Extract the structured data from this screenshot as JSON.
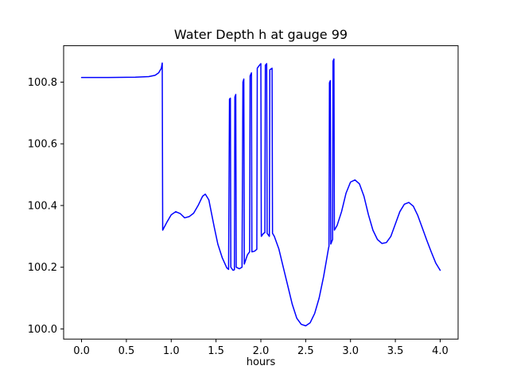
{
  "chart_data": {
    "type": "line",
    "title": "Water Depth h at gauge 99",
    "xlabel": "hours",
    "ylabel": "",
    "line_color": "#0000ff",
    "xlim": [
      -0.2,
      4.2
    ],
    "ylim": [
      99.967,
      100.918
    ],
    "x_ticks": [
      {
        "v": 0.0,
        "label": "0.0"
      },
      {
        "v": 0.5,
        "label": "0.5"
      },
      {
        "v": 1.0,
        "label": "1.0"
      },
      {
        "v": 1.5,
        "label": "1.5"
      },
      {
        "v": 2.0,
        "label": "2.0"
      },
      {
        "v": 2.5,
        "label": "2.5"
      },
      {
        "v": 3.0,
        "label": "3.0"
      },
      {
        "v": 3.5,
        "label": "3.5"
      },
      {
        "v": 4.0,
        "label": "4.0"
      }
    ],
    "y_ticks": [
      {
        "v": 100.0,
        "label": "100.0"
      },
      {
        "v": 100.2,
        "label": "100.2"
      },
      {
        "v": 100.4,
        "label": "100.4"
      },
      {
        "v": 100.6,
        "label": "100.6"
      },
      {
        "v": 100.8,
        "label": "100.8"
      }
    ],
    "points": [
      [
        0.0,
        100.815
      ],
      [
        0.3,
        100.815
      ],
      [
        0.6,
        100.816
      ],
      [
        0.75,
        100.818
      ],
      [
        0.82,
        100.822
      ],
      [
        0.86,
        100.83
      ],
      [
        0.89,
        100.845
      ],
      [
        0.9,
        100.862
      ],
      [
        0.905,
        100.32
      ],
      [
        0.95,
        100.345
      ],
      [
        1.0,
        100.37
      ],
      [
        1.05,
        100.38
      ],
      [
        1.1,
        100.374
      ],
      [
        1.15,
        100.36
      ],
      [
        1.2,
        100.364
      ],
      [
        1.25,
        100.375
      ],
      [
        1.3,
        100.4
      ],
      [
        1.35,
        100.43
      ],
      [
        1.38,
        100.437
      ],
      [
        1.42,
        100.418
      ],
      [
        1.48,
        100.33
      ],
      [
        1.52,
        100.275
      ],
      [
        1.57,
        100.23
      ],
      [
        1.62,
        100.198
      ],
      [
        1.64,
        100.193
      ],
      [
        1.65,
        100.745
      ],
      [
        1.66,
        100.748
      ],
      [
        1.665,
        100.2
      ],
      [
        1.69,
        100.19
      ],
      [
        1.705,
        100.192
      ],
      [
        1.71,
        100.752
      ],
      [
        1.72,
        100.76
      ],
      [
        1.725,
        100.2
      ],
      [
        1.76,
        100.195
      ],
      [
        1.79,
        100.2
      ],
      [
        1.8,
        100.8
      ],
      [
        1.81,
        100.81
      ],
      [
        1.815,
        100.21
      ],
      [
        1.85,
        100.24
      ],
      [
        1.875,
        100.25
      ],
      [
        1.88,
        100.82
      ],
      [
        1.895,
        100.83
      ],
      [
        1.9,
        100.25
      ],
      [
        1.93,
        100.252
      ],
      [
        1.955,
        100.258
      ],
      [
        1.96,
        100.845
      ],
      [
        1.985,
        100.855
      ],
      [
        2.0,
        100.86
      ],
      [
        2.005,
        100.3
      ],
      [
        2.03,
        100.31
      ],
      [
        2.045,
        100.312
      ],
      [
        2.05,
        100.855
      ],
      [
        2.065,
        100.86
      ],
      [
        2.07,
        100.31
      ],
      [
        2.095,
        100.3
      ],
      [
        2.1,
        100.84
      ],
      [
        2.125,
        100.845
      ],
      [
        2.13,
        100.31
      ],
      [
        2.15,
        100.3
      ],
      [
        2.2,
        100.26
      ],
      [
        2.25,
        100.2
      ],
      [
        2.3,
        100.14
      ],
      [
        2.35,
        100.08
      ],
      [
        2.4,
        100.035
      ],
      [
        2.45,
        100.015
      ],
      [
        2.5,
        100.01
      ],
      [
        2.55,
        100.02
      ],
      [
        2.6,
        100.05
      ],
      [
        2.65,
        100.1
      ],
      [
        2.7,
        100.17
      ],
      [
        2.73,
        100.22
      ],
      [
        2.755,
        100.262
      ],
      [
        2.76,
        100.268
      ],
      [
        2.765,
        100.798
      ],
      [
        2.775,
        100.805
      ],
      [
        2.78,
        100.275
      ],
      [
        2.8,
        100.29
      ],
      [
        2.805,
        100.868
      ],
      [
        2.815,
        100.875
      ],
      [
        2.82,
        100.32
      ],
      [
        2.85,
        100.335
      ],
      [
        2.9,
        100.38
      ],
      [
        2.95,
        100.44
      ],
      [
        3.0,
        100.476
      ],
      [
        3.05,
        100.483
      ],
      [
        3.1,
        100.47
      ],
      [
        3.15,
        100.43
      ],
      [
        3.2,
        100.37
      ],
      [
        3.25,
        100.32
      ],
      [
        3.3,
        100.29
      ],
      [
        3.35,
        100.277
      ],
      [
        3.4,
        100.28
      ],
      [
        3.45,
        100.3
      ],
      [
        3.5,
        100.34
      ],
      [
        3.55,
        100.38
      ],
      [
        3.6,
        100.404
      ],
      [
        3.65,
        100.41
      ],
      [
        3.7,
        100.398
      ],
      [
        3.75,
        100.368
      ],
      [
        3.8,
        100.328
      ],
      [
        3.85,
        100.288
      ],
      [
        3.9,
        100.25
      ],
      [
        3.95,
        100.214
      ],
      [
        4.0,
        100.19
      ]
    ]
  }
}
